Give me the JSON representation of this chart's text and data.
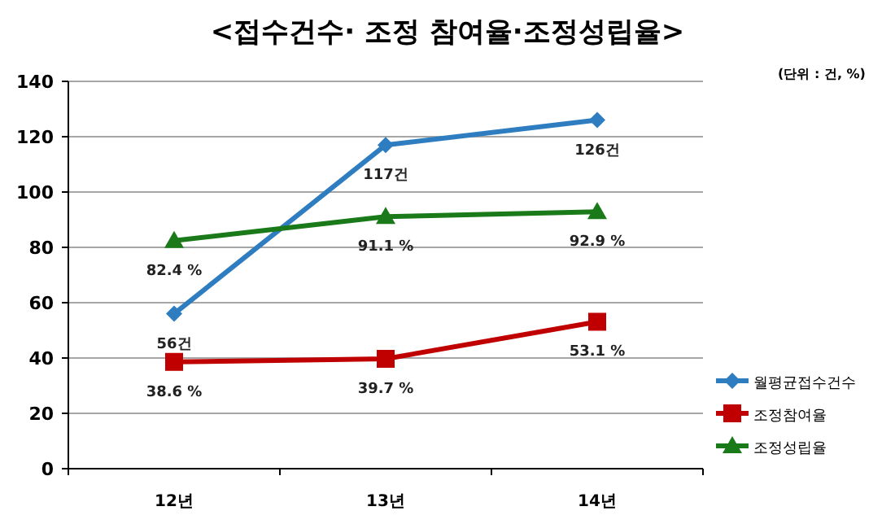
{
  "chart_data": {
    "type": "line",
    "title": "<접수건수· 조정 참여율·조정성립율>",
    "annotations": [
      "(단위 : 건, %)"
    ],
    "categories": [
      "12년",
      "13년",
      "14년"
    ],
    "series": [
      {
        "name": "월평균접수건수",
        "color": "#2e7dc0",
        "marker": "diamond",
        "values": [
          56,
          117,
          126
        ],
        "value_labels": [
          "56건",
          "117건",
          "126건"
        ]
      },
      {
        "name": "조정참여율",
        "color": "#c00000",
        "marker": "square",
        "values": [
          38.6,
          39.7,
          53.1
        ],
        "value_labels": [
          "38.6 %",
          "39.7 %",
          "53.1 %"
        ]
      },
      {
        "name": "조정성립율",
        "color": "#1a7a1a",
        "marker": "triangle",
        "values": [
          82.4,
          91.1,
          92.9
        ],
        "value_labels": [
          "82.4 %",
          "91.1 %",
          "92.9 %"
        ]
      }
    ],
    "ylim": [
      0,
      140
    ],
    "yticks": [
      0,
      20,
      40,
      60,
      80,
      100,
      120,
      140
    ],
    "grid": "y",
    "legend": "right"
  }
}
